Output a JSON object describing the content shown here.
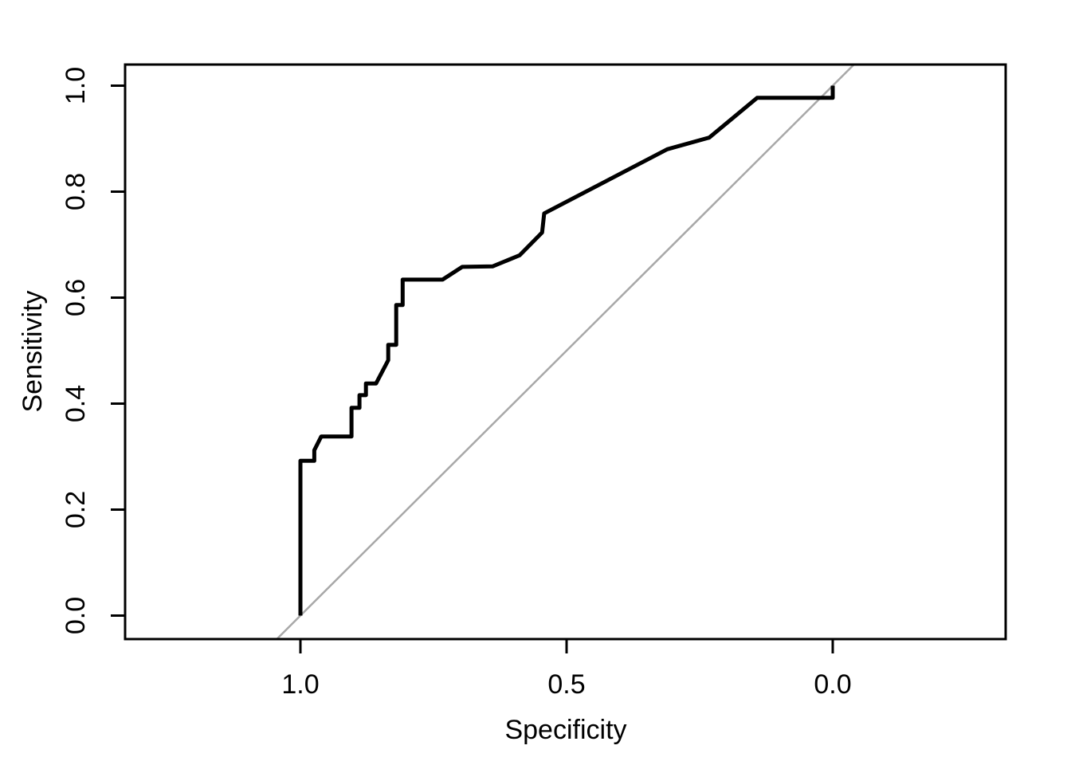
{
  "figure": {
    "background_color": "#ffffff",
    "title": ""
  },
  "chart_data": {
    "type": "line",
    "subtype": "roc-curve",
    "title": "",
    "xlabel": "Specificity",
    "ylabel": "Sensitivity",
    "grid": false,
    "legend": "none",
    "x_axis": {
      "label": "Specificity",
      "reversed": true,
      "range": [
        1.0,
        0.0
      ],
      "tick_labels": [
        "1.0",
        "0.5",
        "0.0"
      ],
      "tick_values": [
        1.0,
        0.5,
        0.0
      ]
    },
    "y_axis": {
      "label": "Sensitivity",
      "range": [
        0.0,
        1.0
      ],
      "tick_labels": [
        "0.0",
        "0.2",
        "0.4",
        "0.6",
        "0.8",
        "1.0"
      ],
      "tick_values": [
        0.0,
        0.2,
        0.4,
        0.6,
        0.8,
        1.0
      ],
      "tick_label_rotation_deg": 90
    },
    "series": [
      {
        "name": "roc-curve",
        "color": "#000000",
        "line_width": 5,
        "points_spec_sens": [
          [
            1.0,
            0.0
          ],
          [
            1.0,
            0.292
          ],
          [
            0.974,
            0.292
          ],
          [
            0.974,
            0.312
          ],
          [
            0.961,
            0.338
          ],
          [
            0.904,
            0.338
          ],
          [
            0.904,
            0.392
          ],
          [
            0.889,
            0.392
          ],
          [
            0.889,
            0.416
          ],
          [
            0.877,
            0.416
          ],
          [
            0.877,
            0.438
          ],
          [
            0.858,
            0.438
          ],
          [
            0.835,
            0.482
          ],
          [
            0.835,
            0.511
          ],
          [
            0.82,
            0.511
          ],
          [
            0.82,
            0.586
          ],
          [
            0.808,
            0.586
          ],
          [
            0.808,
            0.634
          ],
          [
            0.733,
            0.634
          ],
          [
            0.696,
            0.658
          ],
          [
            0.639,
            0.659
          ],
          [
            0.588,
            0.68
          ],
          [
            0.546,
            0.723
          ],
          [
            0.542,
            0.759
          ],
          [
            0.311,
            0.88
          ],
          [
            0.232,
            0.902
          ],
          [
            0.142,
            0.977
          ],
          [
            0.0,
            0.977
          ],
          [
            0.0,
            1.0
          ]
        ]
      },
      {
        "name": "chance-diagonal",
        "color": "#a8a8a8",
        "line_width": 2.5,
        "points_spec_sens": [
          [
            1.0,
            0.0
          ],
          [
            0.0,
            1.0
          ]
        ],
        "extends_to_plot_edges": true
      }
    ]
  }
}
